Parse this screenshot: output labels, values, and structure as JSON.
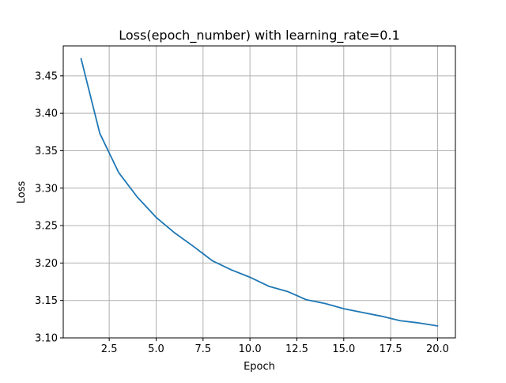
{
  "chart_data": {
    "type": "line",
    "title": "Loss(epoch_number) with learning_rate=0.1",
    "xlabel": "Epoch",
    "ylabel": "Loss",
    "xlim": [
      0.05,
      20.95
    ],
    "ylim": [
      3.1,
      3.49
    ],
    "grid": true,
    "x_ticks": [
      2.5,
      5.0,
      7.5,
      10.0,
      12.5,
      15.0,
      17.5,
      20.0
    ],
    "x_tick_labels": [
      "2.5",
      "5.0",
      "7.5",
      "10.0",
      "12.5",
      "15.0",
      "17.5",
      "20.0"
    ],
    "y_ticks": [
      3.1,
      3.15,
      3.2,
      3.25,
      3.3,
      3.35,
      3.4,
      3.45
    ],
    "y_tick_labels": [
      "3.10",
      "3.15",
      "3.20",
      "3.25",
      "3.30",
      "3.35",
      "3.40",
      "3.45"
    ],
    "series": [
      {
        "name": "loss",
        "color": "#1f77b4",
        "x": [
          1,
          2,
          3,
          4,
          5,
          6,
          7,
          8,
          9,
          10,
          11,
          12,
          13,
          14,
          15,
          16,
          17,
          18,
          19,
          20
        ],
        "values": [
          3.473,
          3.373,
          3.321,
          3.288,
          3.261,
          3.24,
          3.222,
          3.203,
          3.191,
          3.181,
          3.169,
          3.162,
          3.151,
          3.146,
          3.139,
          3.134,
          3.129,
          3.123,
          3.12,
          3.116
        ]
      }
    ]
  }
}
